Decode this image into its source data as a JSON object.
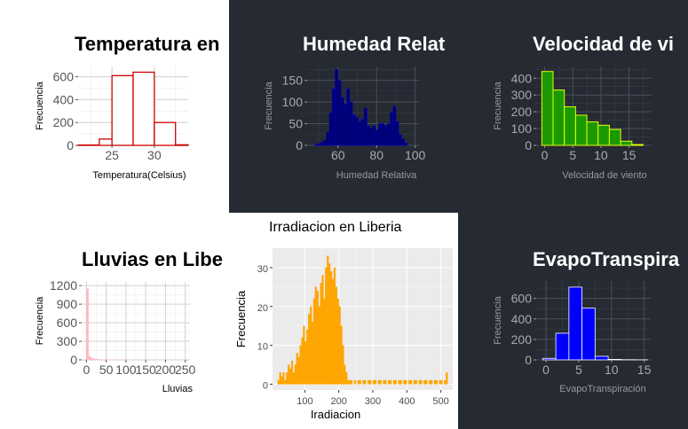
{
  "colors": {
    "dark_background": "#262a33",
    "temperatura": "#cc0000",
    "humedad": "#000080",
    "viento_fill": "#1a9900",
    "viento_outline": "#e6ff00",
    "lluvias": "#ffb6c1",
    "irradiacion": "#ffa500",
    "evapo_fill": "#0000ff"
  },
  "chart_data": [
    {
      "id": "temperatura",
      "type": "bar",
      "title": "Temperatura en",
      "xlabel": "Temperatura(Celsius)",
      "ylabel": "Frecuencia",
      "xlim": [
        21,
        34
      ],
      "ylim": [
        0,
        690
      ],
      "xticks": [
        25,
        30
      ],
      "yticks": [
        0,
        200,
        400,
        600
      ],
      "bins": [
        {
          "x0": 21,
          "x1": 23.5,
          "y": 3
        },
        {
          "x0": 23.5,
          "x1": 25,
          "y": 55
        },
        {
          "x0": 25,
          "x1": 27.5,
          "y": 610
        },
        {
          "x0": 27.5,
          "x1": 30,
          "y": 640
        },
        {
          "x0": 30,
          "x1": 32.5,
          "y": 200
        },
        {
          "x0": 32.5,
          "x1": 34,
          "y": 5
        }
      ],
      "grid": true
    },
    {
      "id": "humedad",
      "type": "bar",
      "title": "Humedad Relat",
      "xlabel": "Humedad Relativa",
      "ylabel": "Frecuencia",
      "xlim": [
        44,
        102
      ],
      "ylim": [
        0,
        182
      ],
      "xticks": [
        60,
        80,
        100
      ],
      "yticks": [
        0,
        50,
        100,
        150
      ],
      "bin_start": 48,
      "bin_width": 1.5,
      "values": [
        2,
        4,
        7,
        12,
        30,
        75,
        130,
        175,
        150,
        110,
        95,
        130,
        100,
        70,
        65,
        55,
        60,
        85,
        45,
        40,
        45,
        35,
        50,
        50,
        45,
        50,
        75,
        90,
        55,
        25,
        15,
        5
      ],
      "grid": true
    },
    {
      "id": "viento",
      "type": "bar",
      "title": "Velocidad de vi",
      "xlabel": "Velocidad de viento",
      "ylabel": "Frecuencia",
      "xlim": [
        -1.5,
        19
      ],
      "ylim": [
        0,
        470
      ],
      "xticks": [
        0,
        5,
        10,
        15
      ],
      "yticks": [
        0,
        100,
        200,
        300,
        400
      ],
      "bin_start": -0.5,
      "bin_width": 2,
      "values": [
        440,
        330,
        230,
        180,
        140,
        120,
        95,
        25,
        5
      ],
      "grid": true
    },
    {
      "id": "lluvias",
      "type": "bar",
      "title": "Lluvias en Libe",
      "xlabel": "Lluvias",
      "ylabel": "Frecuencia",
      "xlim": [
        -12,
        262
      ],
      "ylim": [
        0,
        1260
      ],
      "xticks": [
        0,
        50,
        100,
        150,
        200,
        250
      ],
      "yticks": [
        0,
        300,
        600,
        900,
        1200
      ],
      "bin_start": 0,
      "bin_width": 5,
      "values": [
        1150,
        60,
        30,
        20,
        12,
        8,
        6,
        4,
        3,
        3,
        2,
        2,
        1,
        1,
        1,
        1,
        1,
        1
      ],
      "grid": true
    },
    {
      "id": "irradiacion",
      "type": "bar",
      "title": "Irradiacion en Liberia",
      "xlabel": "Iradiacion",
      "ylabel": "Frecuencia",
      "xlim": [
        5,
        535
      ],
      "ylim": [
        -1.5,
        35
      ],
      "xticks": [
        100,
        200,
        300,
        400,
        500
      ],
      "yticks": [
        0,
        10,
        20,
        30
      ],
      "bin_start": 20,
      "bin_width": 5,
      "values": [
        1,
        3,
        2,
        3,
        1,
        3,
        5,
        4,
        6,
        3,
        5,
        8,
        7,
        10,
        12,
        15,
        11,
        14,
        18,
        20,
        16,
        22,
        25,
        24,
        20,
        26,
        28,
        22,
        30,
        33,
        31,
        29,
        27,
        30,
        25,
        22,
        20,
        15,
        10,
        5,
        3,
        1,
        1,
        1,
        0,
        1,
        0,
        1,
        1,
        0,
        1,
        1,
        0,
        1,
        1,
        0,
        1,
        1,
        0,
        1,
        1,
        0,
        1,
        1,
        0,
        1,
        1,
        0,
        1,
        1,
        0,
        1,
        1,
        0,
        1,
        1,
        0,
        1,
        1,
        0,
        1,
        1,
        0,
        1,
        1,
        0,
        1,
        1,
        0,
        1,
        1,
        0,
        1,
        1,
        0,
        1,
        1,
        0,
        1,
        3
      ],
      "grid": true
    },
    {
      "id": "evapo",
      "type": "bar",
      "title": "EvapoTranspira",
      "xlabel": "EvapoTranspiración",
      "ylabel": "Frecuencia",
      "xlim": [
        -1.5,
        16
      ],
      "ylim": [
        0,
        770
      ],
      "xticks": [
        0,
        5,
        10,
        15
      ],
      "yticks": [
        0,
        200,
        400,
        600
      ],
      "bin_start": -0.5,
      "bin_width": 2,
      "values": [
        15,
        260,
        710,
        505,
        35,
        5,
        2,
        1
      ],
      "grid": true
    }
  ]
}
